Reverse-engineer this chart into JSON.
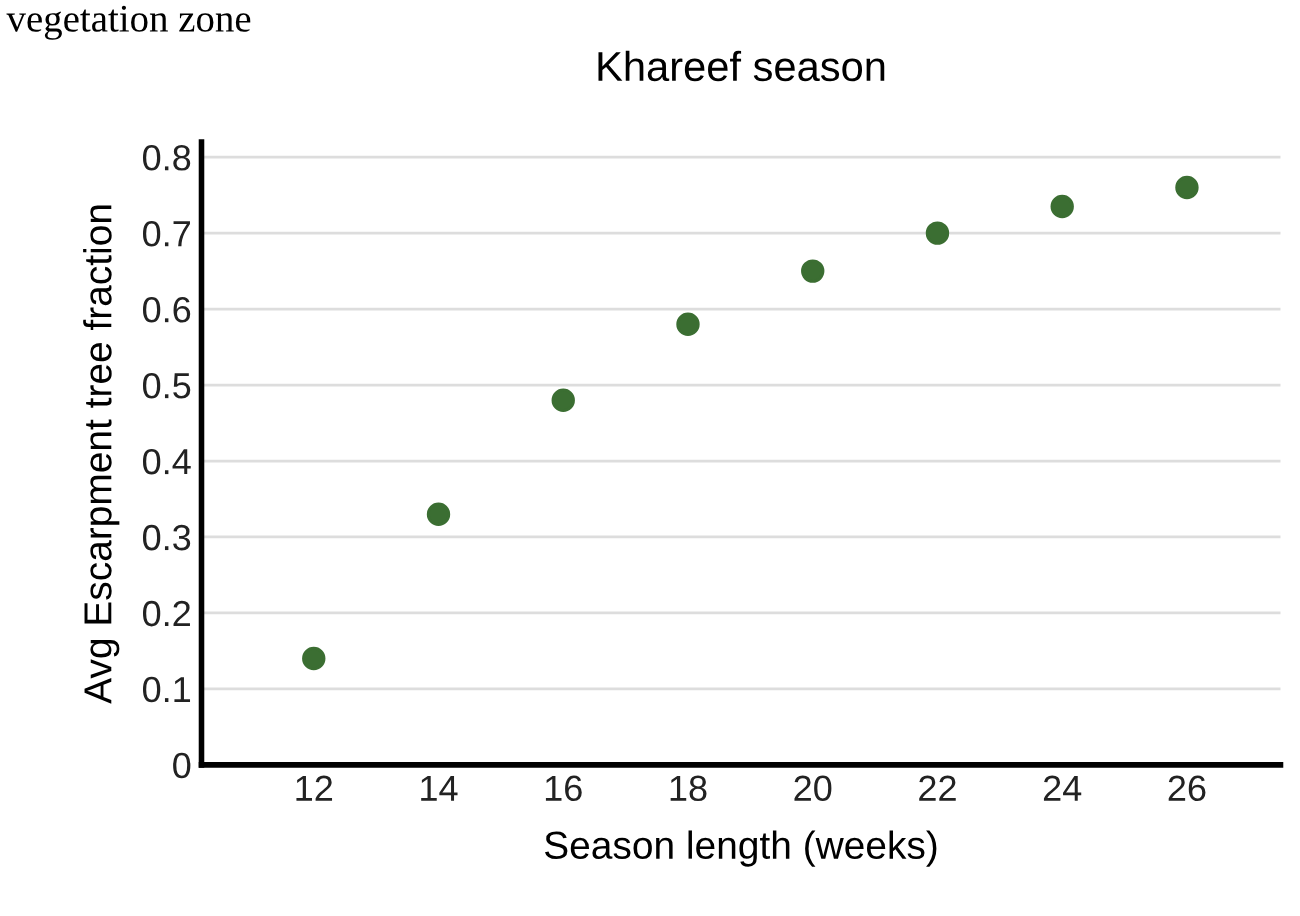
{
  "chart_data": {
    "type": "scatter",
    "title": "Khareef season",
    "xlabel": "Season length (weeks)",
    "ylabel": "Avg Escarpment tree fraction",
    "annotations": [
      "vegetation zone"
    ],
    "x": [
      12,
      14,
      16,
      18,
      20,
      22,
      24,
      26
    ],
    "series": [
      {
        "color": "#3b6e32",
        "values": [
          0.14,
          0.33,
          0.48,
          0.58,
          0.65,
          0.7,
          0.735,
          0.76
        ]
      }
    ],
    "xlim": [
      10.2,
      27.5
    ],
    "xticks": [
      12,
      14,
      16,
      18,
      20,
      22,
      24,
      26
    ],
    "ylim": [
      0,
      0.82
    ],
    "yticks": [
      0,
      0.1,
      0.2,
      0.3,
      0.4,
      0.5,
      0.6,
      0.7,
      0.8
    ],
    "grid": "y",
    "marker": "circle"
  }
}
